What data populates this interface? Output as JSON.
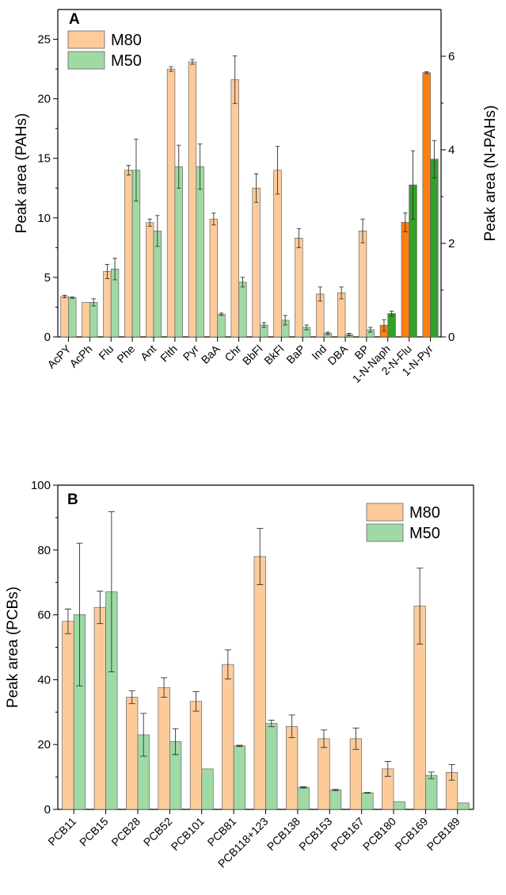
{
  "chart_data": [
    {
      "type": "bar",
      "panel_label": "A",
      "categories": [
        "AcPY",
        "AcPh",
        "Flu",
        "Phe",
        "Ant",
        "Flth",
        "Pyr",
        "BaA",
        "Chr",
        "BbFl",
        "BkFl",
        "BaP",
        "Ind",
        "DBA",
        "BP",
        "1-N-Naph",
        "2-N-Flu",
        "1-N-Pyr"
      ],
      "ylabel": "Peak area (PAHs)",
      "ylabel_right": "Peak area (N-PAHs)",
      "ylim": [
        0,
        27.5
      ],
      "yticks": [
        0,
        5,
        10,
        15,
        20,
        25
      ],
      "ylim_right": [
        0,
        7
      ],
      "yticks_right": [
        0,
        2,
        4,
        6
      ],
      "right_axis_categories": [
        "1-N-Naph",
        "2-N-Flu",
        "1-N-Pyr"
      ],
      "legend_position": "top-left",
      "series": [
        {
          "name": "M80",
          "color": "#FDCB9A",
          "dark_color": "#FF7F0E",
          "values": [
            3.4,
            2.9,
            5.5,
            14.0,
            9.6,
            22.5,
            23.1,
            9.9,
            21.6,
            12.5,
            14.0,
            8.3,
            3.6,
            3.7,
            8.9,
            0.25,
            2.45,
            5.65
          ],
          "errors": [
            0.1,
            0.0,
            0.6,
            0.4,
            0.3,
            0.2,
            0.2,
            0.5,
            2.0,
            1.2,
            2.0,
            0.8,
            0.6,
            0.5,
            1.0,
            0.12,
            0.2,
            0.02
          ]
        },
        {
          "name": "M50",
          "color": "#9FD9A4",
          "dark_color": "#33A02C",
          "values": [
            3.3,
            2.9,
            5.7,
            14.0,
            8.9,
            14.3,
            14.3,
            1.9,
            4.6,
            1.0,
            1.4,
            0.8,
            0.3,
            0.2,
            0.6,
            0.5,
            3.25,
            3.8
          ],
          "errors": [
            0.05,
            0.3,
            0.9,
            2.6,
            1.3,
            1.8,
            1.9,
            0.1,
            0.4,
            0.2,
            0.4,
            0.2,
            0.1,
            0.1,
            0.2,
            0.05,
            0.73,
            0.4
          ]
        }
      ]
    },
    {
      "type": "bar",
      "panel_label": "B",
      "categories": [
        "PCB11",
        "PCB15",
        "PCB28",
        "PCB52",
        "PCB101",
        "PCB81",
        "PCB118+123",
        "PCB138",
        "PCB153",
        "PCB167",
        "PCB180",
        "PCB169",
        "PCB189"
      ],
      "ylabel": "Peak area (PCBs)",
      "ylim": [
        0,
        100
      ],
      "yticks": [
        0,
        20,
        40,
        60,
        80,
        100
      ],
      "legend_position": "top-right",
      "series": [
        {
          "name": "M80",
          "color": "#FDCB9A",
          "values": [
            58.0,
            62.3,
            34.6,
            37.6,
            33.3,
            44.7,
            78.0,
            25.6,
            21.8,
            21.8,
            12.5,
            62.7,
            11.4
          ],
          "errors": [
            3.8,
            5.0,
            2.0,
            3.0,
            3.0,
            4.5,
            8.7,
            3.5,
            2.7,
            3.3,
            2.3,
            11.7,
            2.4
          ]
        },
        {
          "name": "M50",
          "color": "#9FD9A4",
          "values": [
            60.1,
            67.1,
            23.0,
            20.9,
            12.5,
            19.6,
            26.5,
            6.8,
            6.0,
            5.1,
            2.4,
            10.5,
            2.0
          ],
          "errors": [
            22.0,
            24.7,
            6.6,
            4.0,
            0.0,
            0.2,
            1.0,
            0.2,
            0.2,
            0.1,
            0.0,
            1.0,
            0.0
          ]
        }
      ]
    }
  ]
}
